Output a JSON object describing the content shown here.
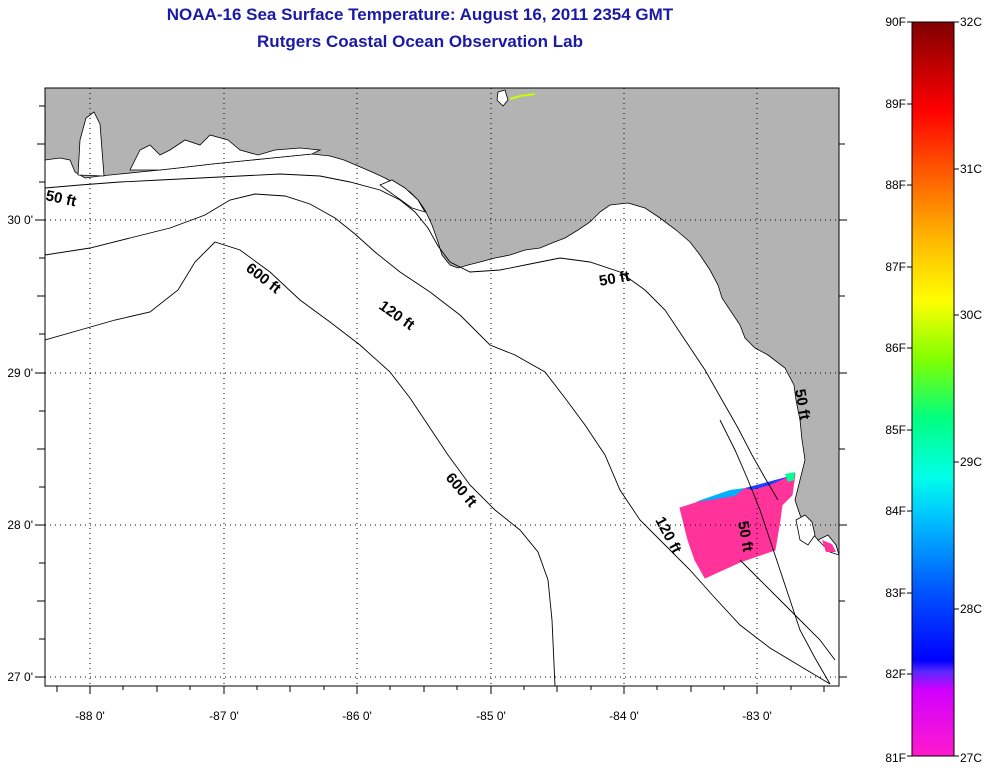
{
  "title": {
    "line1": "NOAA-16 Sea Surface Temperature:  August 16, 2011 2354 GMT",
    "line2": "Rutgers Coastal Ocean Observation Lab"
  },
  "axes": {
    "lon_labels": [
      "-88 0'",
      "-87 0'",
      "-86 0'",
      "-85 0'",
      "-84 0'",
      "-83 0'"
    ],
    "lat_labels": [
      "30 0'",
      "29 0'",
      "28 0'",
      "27 0'"
    ]
  },
  "contours": {
    "labels": [
      "50 ft",
      "600 ft",
      "120 ft",
      "50 ft",
      "600 ft",
      "120 ft",
      "50 ft",
      "50 ft"
    ]
  },
  "colors": {
    "land": "#b3b3b3",
    "water": "#ffffff",
    "sst_patch": "#ff3399",
    "title": "#1a1aa6"
  },
  "colorbar": {
    "fahrenheit_labels": [
      "90F",
      "89F",
      "88F",
      "87F",
      "86F",
      "85F",
      "84F",
      "83F",
      "82F",
      "81F"
    ],
    "celsius_labels": [
      "32C",
      "31C",
      "30C",
      "29C",
      "28C",
      "27C"
    ]
  }
}
